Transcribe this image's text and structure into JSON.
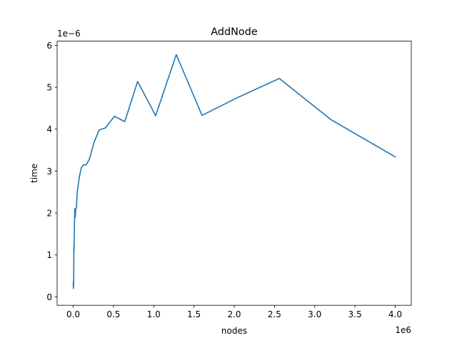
{
  "chart_data": {
    "type": "line",
    "title": "AddNode",
    "xlabel": "nodes",
    "ylabel": "time",
    "x_offset_label": "1e6",
    "y_offset_label": "1e−6",
    "xlim": [
      -200000,
      4200000
    ],
    "ylim": [
      -2e-07,
      6.1e-06
    ],
    "x_ticks": [
      0,
      500000,
      1000000,
      1500000,
      2000000,
      2500000,
      3000000,
      3500000,
      4000000
    ],
    "x_tick_labels": [
      "0.0",
      "0.5",
      "1.0",
      "1.5",
      "2.0",
      "2.5",
      "3.0",
      "3.5",
      "4.0"
    ],
    "y_ticks": [
      0,
      1e-06,
      2e-06,
      3e-06,
      4e-06,
      5e-06,
      6e-06
    ],
    "y_tick_labels": [
      "0",
      "1",
      "2",
      "3",
      "4",
      "5",
      "6"
    ],
    "grid": false,
    "series": [
      {
        "color": "#1f77b4",
        "x": [
          1000,
          2000,
          4000,
          6000,
          8000,
          10000,
          13000,
          16000,
          20000,
          25000,
          32000,
          40000,
          50000,
          64000,
          80000,
          100000,
          128000,
          160000,
          200000,
          256000,
          320000,
          400000,
          512000,
          640000,
          800000,
          1024000,
          1280000,
          1600000,
          2048000,
          2560000,
          3200000,
          4000000
        ],
        "y": [
          3.5e-07,
          2e-07,
          2.5e-07,
          3.8e-07,
          1.22e-06,
          1.1e-06,
          1.4e-06,
          1.8e-06,
          2.1e-06,
          1.9e-06,
          2.1e-06,
          2.13e-06,
          2.5e-06,
          2.7e-06,
          2.9e-06,
          3.08e-06,
          3.15e-06,
          3.15e-06,
          3.28e-06,
          3.67e-06,
          3.98e-06,
          4.03e-06,
          4.31e-06,
          4.18e-06,
          5.14e-06,
          4.32e-06,
          5.78e-06,
          4.33e-06,
          4.76e-06,
          5.21e-06,
          4.23e-06,
          3.34e-06
        ]
      }
    ]
  }
}
